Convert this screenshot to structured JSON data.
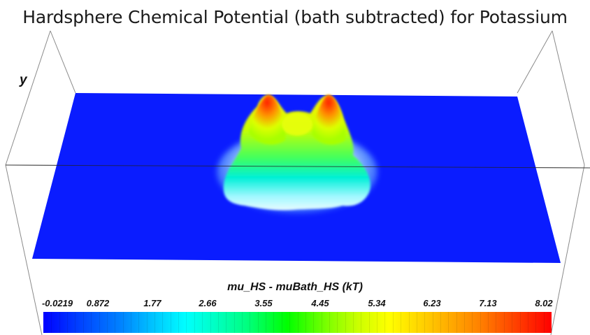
{
  "title": "Hardsphere Chemical Potential (bath subtracted) for Potassium",
  "axis_label_y": "y",
  "colorbar": {
    "title": "mu_HS - muBath_HS (kT)",
    "ticks": [
      "-0.0219",
      "0.872",
      "1.77",
      "2.66",
      "3.55",
      "4.45",
      "5.34",
      "6.23",
      "7.13",
      "8.02"
    ],
    "range": [
      -0.0219,
      8.02
    ],
    "colormap": [
      "#0000ff",
      "#00ffff",
      "#00ff00",
      "#ffff00",
      "#ff0000"
    ]
  },
  "colors": {
    "surface_base": "#0a1cff",
    "box_lines": "#888888",
    "background": "#ffffff"
  }
}
